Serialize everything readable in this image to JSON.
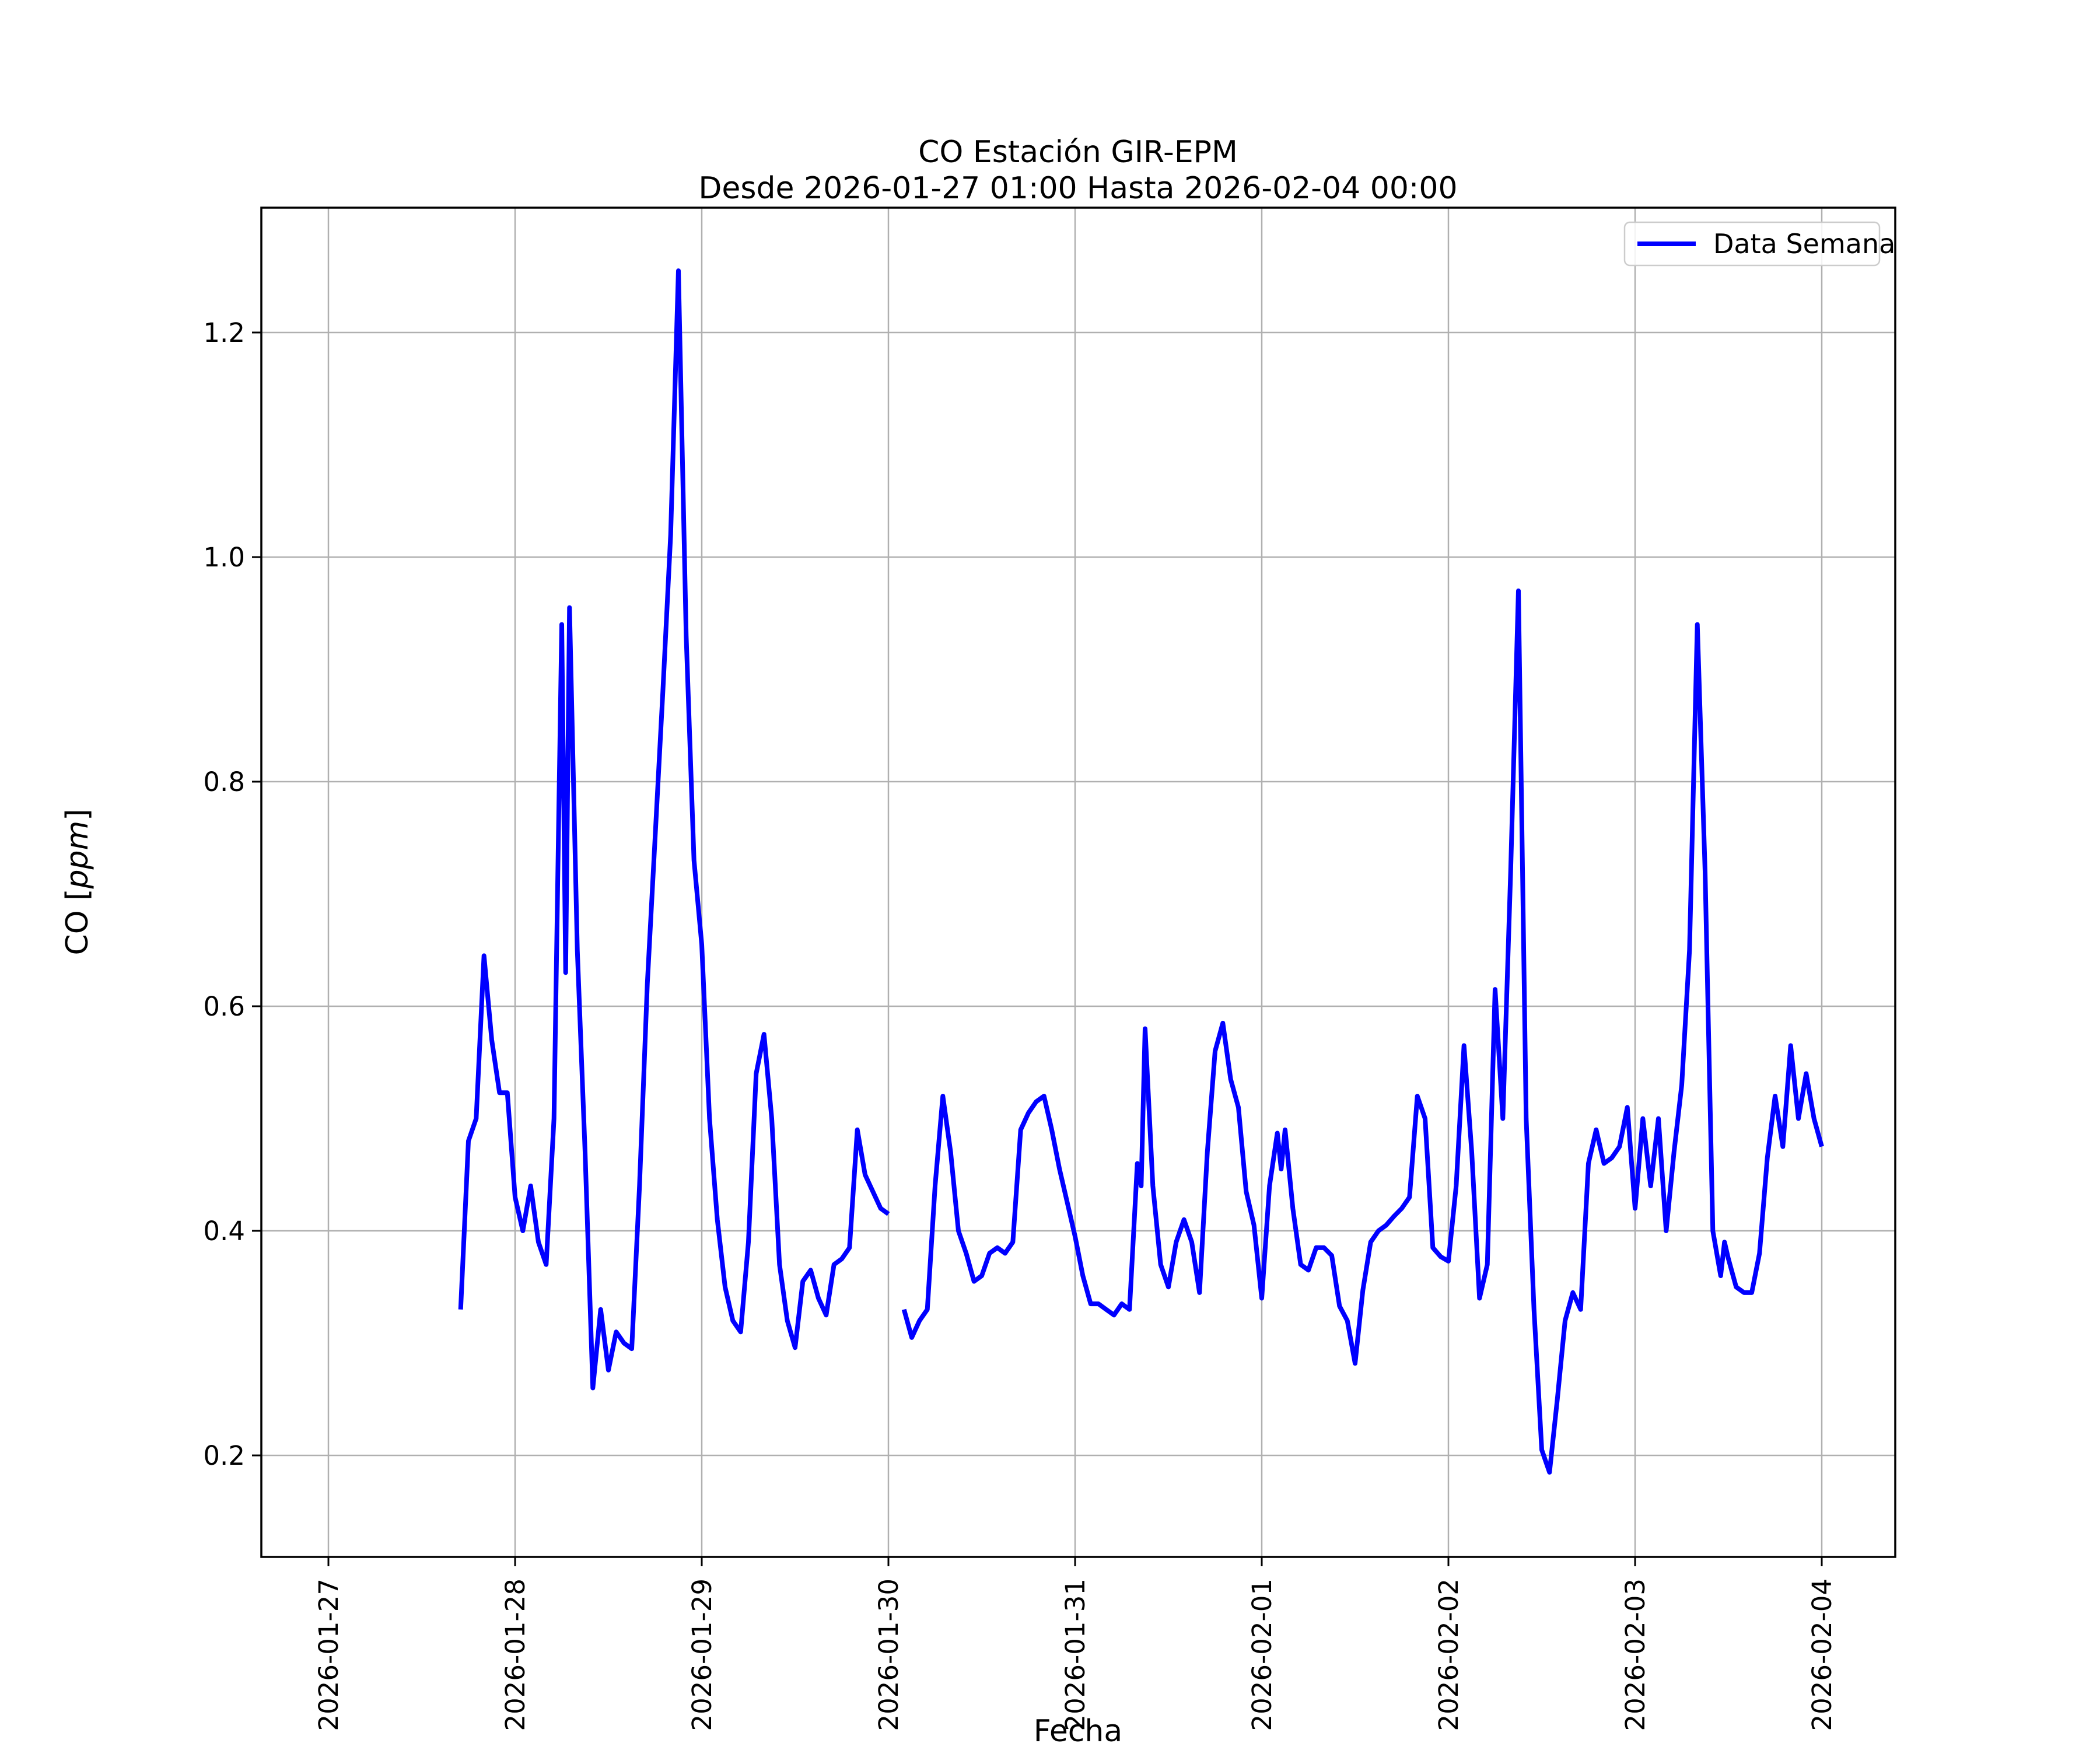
{
  "title": {
    "line1": "CO Estación GIR-EPM",
    "line2": "Desde 2026-01-27 01:00 Hasta 2026-02-04 00:00"
  },
  "axes": {
    "xlabel": "Fecha",
    "ylabel_prefix": "CO [",
    "ylabel_italic": "ppm",
    "ylabel_suffix": "]"
  },
  "legend": {
    "label": "Data Semana"
  },
  "chart_data": {
    "type": "line",
    "title": "CO Estación GIR-EPM\nDesde 2026-01-27 01:00 Hasta 2026-02-04 00:00",
    "xlabel": "Fecha",
    "ylabel": "CO [ppm]",
    "grid": true,
    "legend_position": "upper right",
    "series_name": "Data Semana",
    "line_color": "#0000ff",
    "grid_color": "#b0b0b0",
    "x_tick_labels": [
      "2026-01-27",
      "2026-01-28",
      "2026-01-29",
      "2026-01-30",
      "2026-01-31",
      "2026-02-01",
      "2026-02-02",
      "2026-02-03",
      "2026-02-04"
    ],
    "y_tick_labels": [
      "0.2",
      "0.4",
      "0.6",
      "0.8",
      "1.0",
      "1.2"
    ],
    "y_ticks": [
      0.2,
      0.4,
      0.6,
      0.8,
      1.0,
      1.2
    ],
    "ylim": [
      0.129,
      1.311
    ],
    "x_axis_note": "x = hours after 2026-01-27 00:00; null value = missing data gap",
    "points": [
      [
        17,
        0.33
      ],
      [
        18,
        0.48
      ],
      [
        19,
        0.5
      ],
      [
        20,
        0.645
      ],
      [
        21,
        0.57
      ],
      [
        22,
        0.523
      ],
      [
        23,
        0.523
      ],
      [
        24,
        0.43
      ],
      [
        25,
        0.4
      ],
      [
        26,
        0.44
      ],
      [
        27,
        0.39
      ],
      [
        28,
        0.37
      ],
      [
        29,
        0.5
      ],
      [
        30,
        0.94
      ],
      [
        30.5,
        0.63
      ],
      [
        31,
        0.955
      ],
      [
        32,
        0.65
      ],
      [
        33,
        0.47
      ],
      [
        34,
        0.26
      ],
      [
        35,
        0.33
      ],
      [
        36,
        0.276
      ],
      [
        37,
        0.31
      ],
      [
        38,
        0.3
      ],
      [
        39,
        0.295
      ],
      [
        40,
        0.44
      ],
      [
        41,
        0.62
      ],
      [
        42,
        0.75
      ],
      [
        43,
        0.88
      ],
      [
        44,
        1.02
      ],
      [
        45,
        1.255
      ],
      [
        46,
        0.93
      ],
      [
        47,
        0.73
      ],
      [
        48,
        0.655
      ],
      [
        49,
        0.5
      ],
      [
        50,
        0.41
      ],
      [
        51,
        0.35
      ],
      [
        52,
        0.32
      ],
      [
        53,
        0.31
      ],
      [
        54,
        0.39
      ],
      [
        55,
        0.54
      ],
      [
        56,
        0.575
      ],
      [
        57,
        0.5
      ],
      [
        58,
        0.37
      ],
      [
        59,
        0.32
      ],
      [
        60,
        0.296
      ],
      [
        61,
        0.355
      ],
      [
        62,
        0.365
      ],
      [
        63,
        0.34
      ],
      [
        64,
        0.325
      ],
      [
        65,
        0.37
      ],
      [
        66,
        0.375
      ],
      [
        67,
        0.385
      ],
      [
        68,
        0.49
      ],
      [
        69,
        0.45
      ],
      [
        70,
        0.435
      ],
      [
        71,
        0.42
      ],
      [
        72,
        0.415
      ],
      [
        73,
        null
      ],
      [
        74,
        0.33
      ],
      [
        75,
        0.305
      ],
      [
        76,
        0.32
      ],
      [
        77,
        0.33
      ],
      [
        78,
        0.44
      ],
      [
        79,
        0.52
      ],
      [
        80,
        0.47
      ],
      [
        81,
        0.4
      ],
      [
        82,
        0.38
      ],
      [
        83,
        0.355
      ],
      [
        84,
        0.36
      ],
      [
        85,
        0.38
      ],
      [
        86,
        0.385
      ],
      [
        87,
        0.38
      ],
      [
        88,
        0.39
      ],
      [
        89,
        0.49
      ],
      [
        90,
        0.505
      ],
      [
        91,
        0.515
      ],
      [
        92,
        0.52
      ],
      [
        93,
        0.49
      ],
      [
        94,
        0.455
      ],
      [
        95,
        0.425
      ],
      [
        96,
        0.395
      ],
      [
        97,
        0.36
      ],
      [
        98,
        0.335
      ],
      [
        99,
        0.335
      ],
      [
        100,
        0.33
      ],
      [
        101,
        0.325
      ],
      [
        102,
        0.335
      ],
      [
        103,
        0.33
      ],
      [
        104,
        0.46
      ],
      [
        104.5,
        0.44
      ],
      [
        105,
        0.58
      ],
      [
        106,
        0.44
      ],
      [
        107,
        0.37
      ],
      [
        108,
        0.35
      ],
      [
        109,
        0.39
      ],
      [
        110,
        0.41
      ],
      [
        111,
        0.39
      ],
      [
        112,
        0.345
      ],
      [
        113,
        0.47
      ],
      [
        114,
        0.56
      ],
      [
        115,
        0.585
      ],
      [
        116,
        0.535
      ],
      [
        117,
        0.51
      ],
      [
        118,
        0.435
      ],
      [
        119,
        0.405
      ],
      [
        120,
        0.34
      ],
      [
        121,
        0.44
      ],
      [
        122,
        0.487
      ],
      [
        122.5,
        0.455
      ],
      [
        123,
        0.49
      ],
      [
        124,
        0.42
      ],
      [
        125,
        0.37
      ],
      [
        126,
        0.365
      ],
      [
        127,
        0.385
      ],
      [
        128,
        0.385
      ],
      [
        129,
        0.378
      ],
      [
        130,
        0.333
      ],
      [
        131,
        0.32
      ],
      [
        132,
        0.282
      ],
      [
        133,
        0.347
      ],
      [
        134,
        0.39
      ],
      [
        135,
        0.4
      ],
      [
        136,
        0.405
      ],
      [
        137,
        0.413
      ],
      [
        138,
        0.42
      ],
      [
        139,
        0.43
      ],
      [
        140,
        0.52
      ],
      [
        141,
        0.5
      ],
      [
        142,
        0.385
      ],
      [
        143,
        0.377
      ],
      [
        144,
        0.373
      ],
      [
        145,
        0.44
      ],
      [
        146,
        0.565
      ],
      [
        147,
        0.47
      ],
      [
        148,
        0.34
      ],
      [
        149,
        0.37
      ],
      [
        150,
        0.615
      ],
      [
        151,
        0.5
      ],
      [
        152,
        0.72
      ],
      [
        153,
        0.97
      ],
      [
        154,
        0.5
      ],
      [
        155,
        0.33
      ],
      [
        156,
        0.205
      ],
      [
        157,
        0.185
      ],
      [
        158,
        0.25
      ],
      [
        159,
        0.32
      ],
      [
        160,
        0.345
      ],
      [
        161,
        0.33
      ],
      [
        162,
        0.46
      ],
      [
        163,
        0.49
      ],
      [
        164,
        0.46
      ],
      [
        165,
        0.465
      ],
      [
        166,
        0.475
      ],
      [
        167,
        0.51
      ],
      [
        168,
        0.42
      ],
      [
        169,
        0.5
      ],
      [
        170,
        0.44
      ],
      [
        171,
        0.5
      ],
      [
        172,
        0.4
      ],
      [
        173,
        0.47
      ],
      [
        174,
        0.53
      ],
      [
        175,
        0.65
      ],
      [
        176,
        0.94
      ],
      [
        177,
        0.72
      ],
      [
        178,
        0.4
      ],
      [
        179,
        0.36
      ],
      [
        179.5,
        0.39
      ],
      [
        180,
        0.375
      ],
      [
        181,
        0.35
      ],
      [
        182,
        0.345
      ],
      [
        183,
        0.345
      ],
      [
        184,
        0.38
      ],
      [
        185,
        0.465
      ],
      [
        186,
        0.52
      ],
      [
        187,
        0.475
      ],
      [
        188,
        0.565
      ],
      [
        189,
        0.5
      ],
      [
        190,
        0.54
      ],
      [
        191,
        0.5
      ],
      [
        192,
        0.475
      ]
    ]
  }
}
